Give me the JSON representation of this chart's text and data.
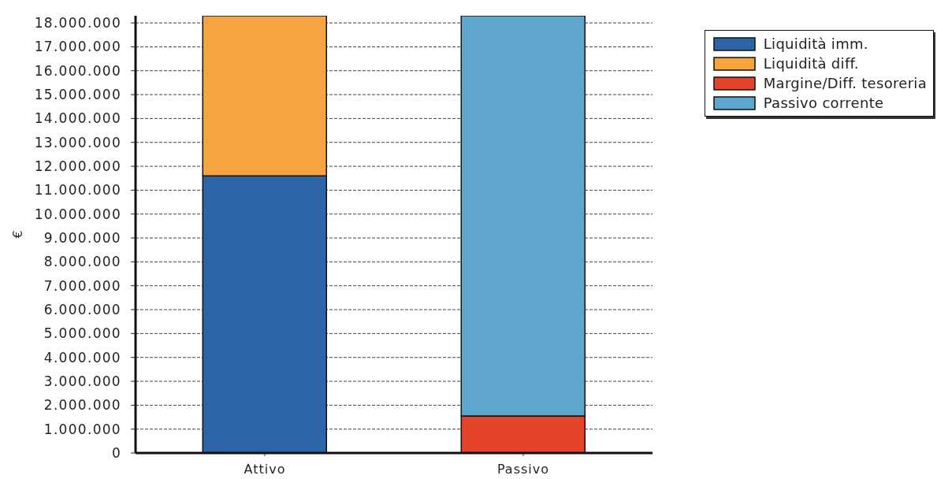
{
  "chart_data": {
    "type": "bar",
    "stacked": true,
    "ylabel": "€",
    "categories": [
      "Attivo",
      "Passivo"
    ],
    "series": [
      {
        "name": "Liquidità imm.",
        "color": "#2e64a8",
        "values": [
          11600000,
          null
        ]
      },
      {
        "name": "Liquidità diff.",
        "color": "#f5a440",
        "values": [
          6700000,
          null
        ]
      },
      {
        "name": "Margine/Diff. tesoreria",
        "color": "#e4442a",
        "values": [
          null,
          1550000
        ]
      },
      {
        "name": "Passivo corrente",
        "color": "#5fa6cc",
        "values": [
          null,
          16750000
        ]
      }
    ],
    "ylim": [
      0,
      18300000
    ],
    "yticks": [
      0,
      {
        "value": 1000000,
        "label": "1.000.000"
      },
      {
        "value": 2000000,
        "label": "2.000.000"
      },
      {
        "value": 3000000,
        "label": "3.000.000"
      },
      {
        "value": 4000000,
        "label": "4.000.000"
      },
      {
        "value": 5000000,
        "label": "5.000.000"
      },
      {
        "value": 6000000,
        "label": "6.000.000"
      },
      {
        "value": 7000000,
        "label": "7.000.000"
      },
      {
        "value": 8000000,
        "label": "8.000.000"
      },
      {
        "value": 9000000,
        "label": "9.000.000"
      },
      {
        "value": 10000000,
        "label": "10.000.000"
      },
      {
        "value": 11000000,
        "label": "11.000.000"
      },
      {
        "value": 12000000,
        "label": "12.000.000"
      },
      {
        "value": 13000000,
        "label": "13.000.000"
      },
      {
        "value": 14000000,
        "label": "14.000.000"
      },
      {
        "value": 15000000,
        "label": "15.000.000"
      },
      {
        "value": 16000000,
        "label": "16.000.000"
      },
      {
        "value": 17000000,
        "label": "17.000.000"
      },
      {
        "value": 18000000,
        "label": "18.000.000"
      }
    ],
    "grid": "y",
    "legend": "top right"
  }
}
